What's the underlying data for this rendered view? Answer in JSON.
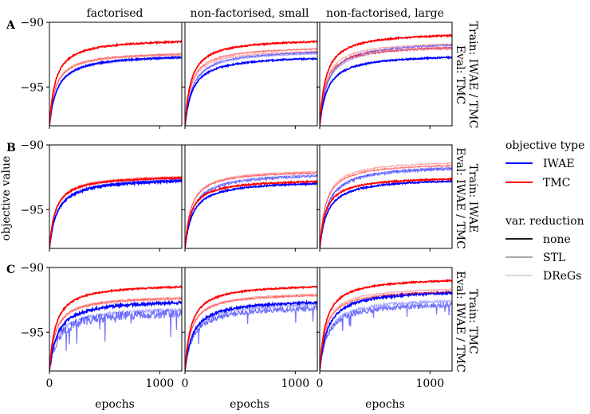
{
  "figure": {
    "column_titles": [
      "factorised",
      "non-factorised, small",
      "non-factorised, large"
    ],
    "row_labels": [
      "A",
      "B",
      "C"
    ],
    "row_side_labels": [
      [
        "Train: IWAE / TMC",
        "Eval: TMC"
      ],
      [
        "Train: IWAE",
        "Eval: IWAE / TMC"
      ],
      [
        "Train: TMC",
        "Eval: IWAE / TMC"
      ]
    ],
    "ylabel": "objective value",
    "xlabel": "epochs",
    "x_ticks": [
      "0",
      "1000"
    ],
    "y_ticks": [
      "−90",
      "−95"
    ]
  },
  "legend": {
    "title_1": "objective type",
    "color_items": [
      {
        "label": "IWAE",
        "color": "#0000ff"
      },
      {
        "label": "TMC",
        "color": "#ff0000"
      }
    ],
    "title_2": "var. reduction",
    "style_items": [
      {
        "label": "none",
        "color": "#000000",
        "opacity": 1.0
      },
      {
        "label": "STL",
        "color": "#000000",
        "opacity": 0.45
      },
      {
        "label": "DReGs",
        "color": "#000000",
        "opacity": 0.2
      }
    ]
  },
  "chart_data": {
    "type": "line",
    "xlim": [
      0,
      1200
    ],
    "ylim": [
      -98,
      -90
    ],
    "x_ticks": [
      0,
      1000
    ],
    "y_ticks": [
      -90,
      -95
    ],
    "start_value": -98.0,
    "panels": [
      {
        "row": "A",
        "col": "factorised",
        "series": [
          {
            "objective": "TMC",
            "reduction": "none",
            "final": -91.2,
            "noise": 0.05
          },
          {
            "objective": "TMC",
            "reduction": "STL",
            "final": -92.2,
            "noise": 0.05
          },
          {
            "objective": "TMC",
            "reduction": "DReGs",
            "final": -92.3,
            "noise": 0.05
          },
          {
            "objective": "IWAE",
            "reduction": "none",
            "final": -92.4,
            "noise": 0.05
          },
          {
            "objective": "IWAE",
            "reduction": "STL",
            "final": -92.4,
            "noise": 0.05
          },
          {
            "objective": "IWAE",
            "reduction": "DReGs",
            "final": -92.5,
            "noise": 0.05
          }
        ]
      },
      {
        "row": "A",
        "col": "non-factorised, small",
        "series": [
          {
            "objective": "TMC",
            "reduction": "none",
            "final": -91.2,
            "noise": 0.05
          },
          {
            "objective": "TMC",
            "reduction": "STL",
            "final": -91.8,
            "noise": 0.05
          },
          {
            "objective": "TMC",
            "reduction": "DReGs",
            "final": -92.0,
            "noise": 0.05
          },
          {
            "objective": "IWAE",
            "reduction": "none",
            "final": -92.5,
            "noise": 0.05
          },
          {
            "objective": "IWAE",
            "reduction": "STL",
            "final": -92.0,
            "noise": 0.05
          },
          {
            "objective": "IWAE",
            "reduction": "DReGs",
            "final": -92.1,
            "noise": 0.05
          }
        ]
      },
      {
        "row": "A",
        "col": "non-factorised, large",
        "series": [
          {
            "objective": "TMC",
            "reduction": "none",
            "final": -90.7,
            "noise": 0.05
          },
          {
            "objective": "TMC",
            "reduction": "STL",
            "final": -91.7,
            "noise": 0.12
          },
          {
            "objective": "TMC",
            "reduction": "DReGs",
            "final": -91.4,
            "noise": 0.05
          },
          {
            "objective": "IWAE",
            "reduction": "none",
            "final": -92.4,
            "noise": 0.05
          },
          {
            "objective": "IWAE",
            "reduction": "STL",
            "final": -91.4,
            "noise": 0.05
          },
          {
            "objective": "IWAE",
            "reduction": "DReGs",
            "final": -91.6,
            "noise": 0.05
          }
        ]
      },
      {
        "row": "B",
        "col": "factorised",
        "series": [
          {
            "objective": "TMC",
            "reduction": "none",
            "final": -92.3,
            "noise": 0.05
          },
          {
            "objective": "TMC",
            "reduction": "STL",
            "final": -92.3,
            "noise": 0.05
          },
          {
            "objective": "TMC",
            "reduction": "DReGs",
            "final": -92.2,
            "noise": 0.05
          },
          {
            "objective": "IWAE",
            "reduction": "none",
            "final": -92.5,
            "noise": 0.08
          },
          {
            "objective": "IWAE",
            "reduction": "STL",
            "final": -92.4,
            "noise": 0.05
          },
          {
            "objective": "IWAE",
            "reduction": "DReGs",
            "final": -92.4,
            "noise": 0.05
          }
        ]
      },
      {
        "row": "B",
        "col": "non-factorised, small",
        "series": [
          {
            "objective": "TMC",
            "reduction": "none",
            "final": -92.6,
            "noise": 0.05
          },
          {
            "objective": "TMC",
            "reduction": "STL",
            "final": -91.9,
            "noise": 0.05
          },
          {
            "objective": "TMC",
            "reduction": "DReGs",
            "final": -91.8,
            "noise": 0.05
          },
          {
            "objective": "IWAE",
            "reduction": "none",
            "final": -92.7,
            "noise": 0.05
          },
          {
            "objective": "IWAE",
            "reduction": "STL",
            "final": -92.1,
            "noise": 0.08
          },
          {
            "objective": "IWAE",
            "reduction": "DReGs",
            "final": -92.0,
            "noise": 0.05
          }
        ]
      },
      {
        "row": "B",
        "col": "non-factorised, large",
        "series": [
          {
            "objective": "TMC",
            "reduction": "none",
            "final": -92.4,
            "noise": 0.05
          },
          {
            "objective": "TMC",
            "reduction": "STL",
            "final": -91.3,
            "noise": 0.05
          },
          {
            "objective": "TMC",
            "reduction": "DReGs",
            "final": -91.1,
            "noise": 0.05
          },
          {
            "objective": "IWAE",
            "reduction": "none",
            "final": -92.5,
            "noise": 0.05
          },
          {
            "objective": "IWAE",
            "reduction": "STL",
            "final": -91.5,
            "noise": 0.1
          },
          {
            "objective": "IWAE",
            "reduction": "DReGs",
            "final": -91.4,
            "noise": 0.05
          }
        ]
      },
      {
        "row": "C",
        "col": "factorised",
        "series": [
          {
            "objective": "TMC",
            "reduction": "none",
            "final": -91.2,
            "noise": 0.05
          },
          {
            "objective": "TMC",
            "reduction": "STL",
            "final": -92.1,
            "noise": 0.06
          },
          {
            "objective": "TMC",
            "reduction": "DReGs",
            "final": -92.2,
            "noise": 0.05
          },
          {
            "objective": "IWAE",
            "reduction": "none",
            "final": -92.4,
            "noise": 0.1
          },
          {
            "objective": "IWAE",
            "reduction": "STL",
            "final": -93.3,
            "noise": 0.35
          },
          {
            "objective": "IWAE",
            "reduction": "DReGs",
            "final": -93.0,
            "noise": 0.15
          }
        ]
      },
      {
        "row": "C",
        "col": "non-factorised, small",
        "series": [
          {
            "objective": "TMC",
            "reduction": "none",
            "final": -91.2,
            "noise": 0.05
          },
          {
            "objective": "TMC",
            "reduction": "STL",
            "final": -91.9,
            "noise": 0.05
          },
          {
            "objective": "TMC",
            "reduction": "DReGs",
            "final": -91.8,
            "noise": 0.05
          },
          {
            "objective": "IWAE",
            "reduction": "none",
            "final": -92.4,
            "noise": 0.08
          },
          {
            "objective": "IWAE",
            "reduction": "STL",
            "final": -92.9,
            "noise": 0.2
          },
          {
            "objective": "IWAE",
            "reduction": "DReGs",
            "final": -92.6,
            "noise": 0.12
          }
        ]
      },
      {
        "row": "C",
        "col": "non-factorised, large",
        "series": [
          {
            "objective": "TMC",
            "reduction": "none",
            "final": -90.7,
            "noise": 0.05
          },
          {
            "objective": "TMC",
            "reduction": "STL",
            "final": -91.6,
            "noise": 0.05
          },
          {
            "objective": "TMC",
            "reduction": "DReGs",
            "final": -91.4,
            "noise": 0.05
          },
          {
            "objective": "IWAE",
            "reduction": "none",
            "final": -91.6,
            "noise": 0.08
          },
          {
            "objective": "IWAE",
            "reduction": "STL",
            "final": -92.6,
            "noise": 0.2
          },
          {
            "objective": "IWAE",
            "reduction": "DReGs",
            "final": -92.3,
            "noise": 0.15
          }
        ]
      }
    ]
  }
}
